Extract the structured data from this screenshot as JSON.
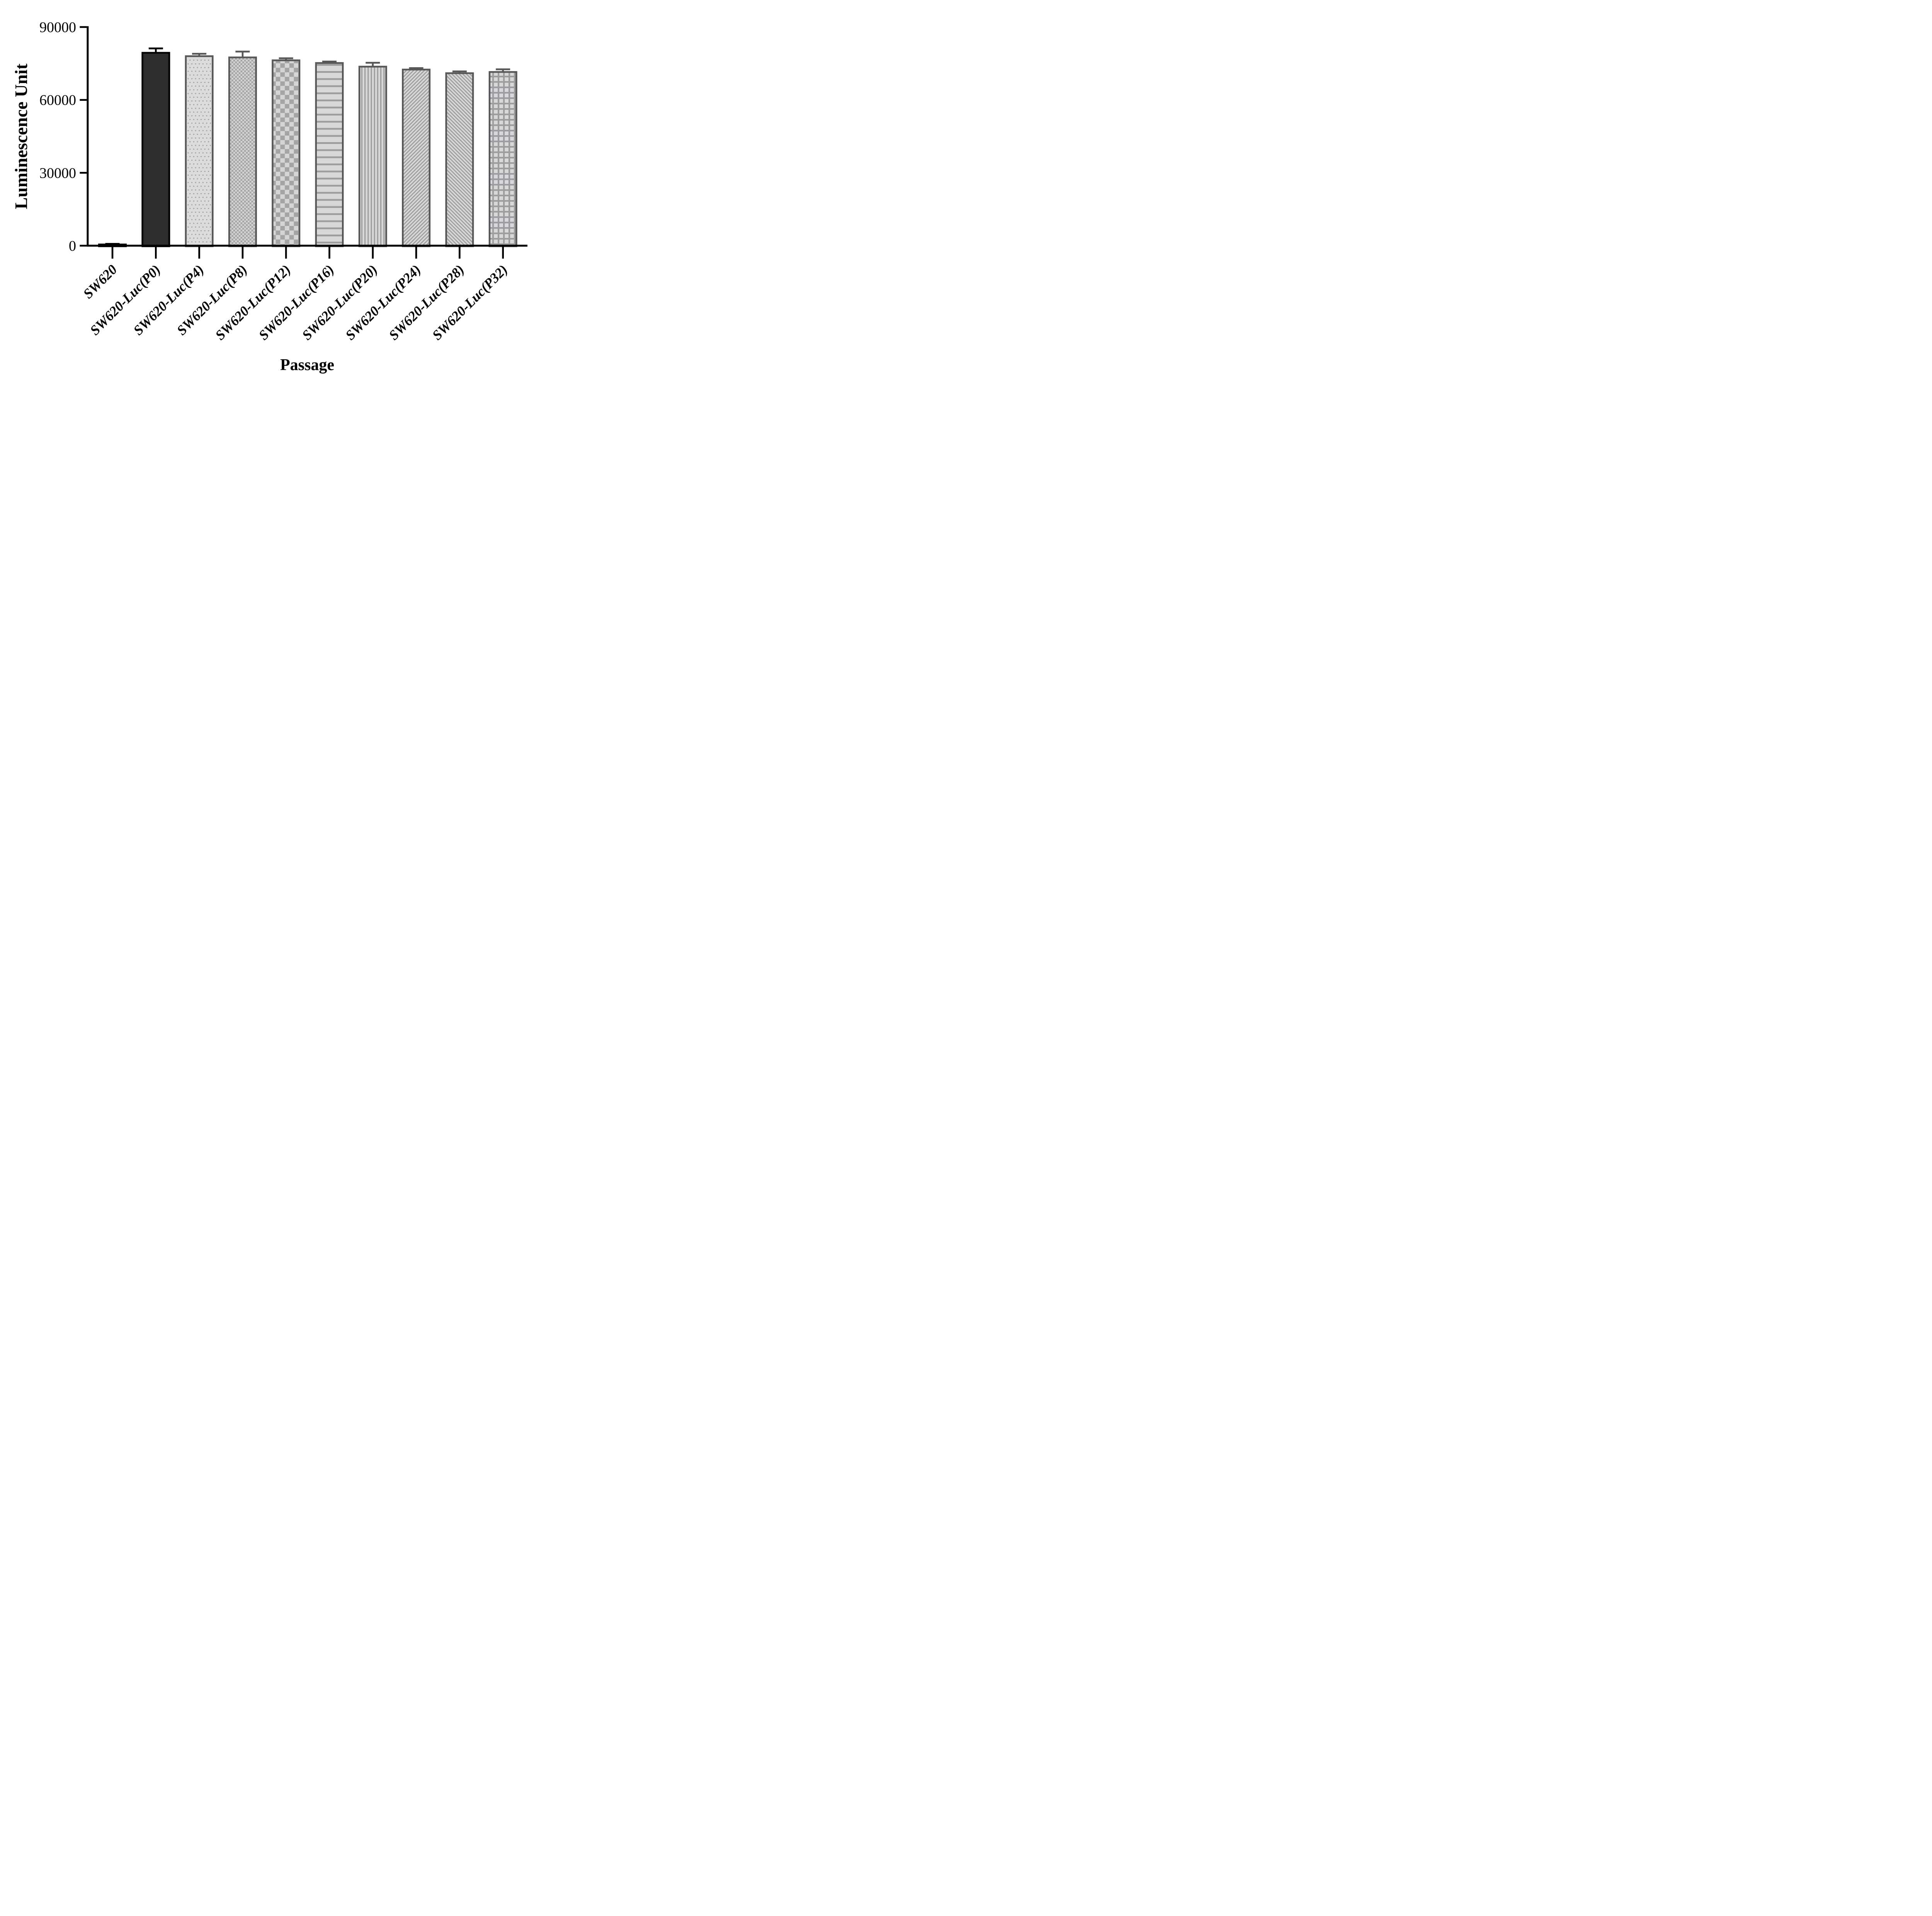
{
  "chart_data": {
    "type": "bar",
    "title": "",
    "xlabel": "Passage",
    "ylabel": "Luminescence Unit",
    "ylim": [
      0,
      90000
    ],
    "yticks": [
      0,
      30000,
      60000,
      90000
    ],
    "ytick_labels": [
      "0",
      "30000",
      "60000",
      "90000"
    ],
    "grid": false,
    "legend_position": "none",
    "categories": [
      "SW620",
      "SW620-Luc(P0)",
      "SW620-Luc(P4)",
      "SW620-Luc(P8)",
      "SW620-Luc(P12)",
      "SW620-Luc(P16)",
      "SW620-Luc(P20)",
      "SW620-Luc(P24)",
      "SW620-Luc(P28)",
      "SW620-Luc(P32)"
    ],
    "values": [
      500,
      79400,
      78000,
      77500,
      76300,
      75200,
      73700,
      72500,
      71000,
      71500
    ],
    "errors_plus": [
      250,
      1800,
      1000,
      2400,
      850,
      600,
      1600,
      600,
      750,
      1100
    ],
    "bar_fill_styles": [
      "solid-black",
      "solid-dark",
      "dots",
      "checker-small",
      "checker-large",
      "horizontal-lines",
      "vertical-lines",
      "diagonal-up",
      "diagonal-down",
      "grid"
    ],
    "colors": {
      "axis": "#000000",
      "bar_fill_light": "#d8d8d8",
      "pattern_gray": "#9d9da1",
      "checker_gray": "#a4a4a4",
      "bar_border": "#58585a",
      "dark_bar_fill": "#2d2d2d",
      "dark_bar_border": "#000000"
    }
  }
}
